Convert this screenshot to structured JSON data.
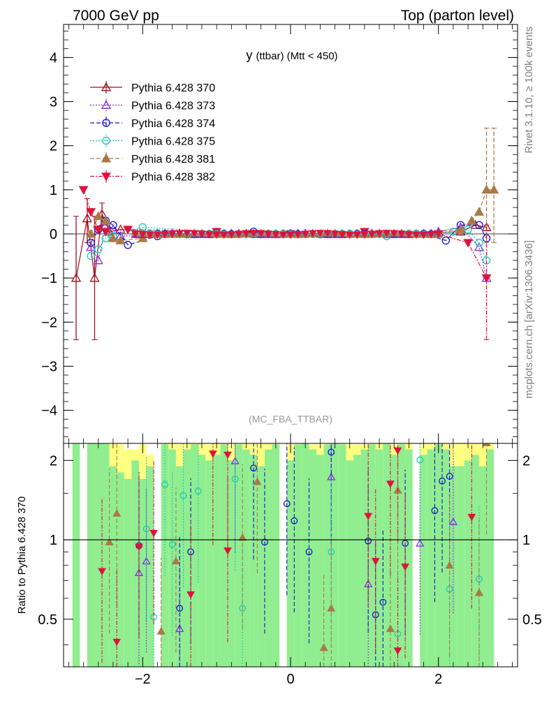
{
  "header": {
    "left": "7000 GeV pp",
    "right": "Top (parton level)"
  },
  "side_labels": {
    "rivet": "Rivet 3.1.10, ≥ 100k events",
    "mcplots": "mcplots.cern.ch [arXiv:1306.3436]"
  },
  "chart_data": [
    {
      "type": "scatter",
      "panel": "main",
      "title_main": "y",
      "title_sub": "(ttbar) (Mtt < 450)",
      "watermark": "(MC_FBA_TTBAR)",
      "xlabel": "",
      "ylabel": "",
      "xlim": [
        -3.07,
        3.07
      ],
      "ylim": [
        -4.75,
        4.75
      ],
      "yticks": [
        -4,
        -3,
        -2,
        -1,
        0,
        1,
        2,
        3,
        4
      ],
      "xticks": [
        -2,
        0,
        2
      ],
      "legend_position": "top-left",
      "series": [
        {
          "name": "Pythia 6.428 370",
          "color": "#a00f1e",
          "marker": "open-triangle-up",
          "dash": "solid",
          "points": [
            [
              -2.9,
              -1.0
            ],
            [
              -2.75,
              0.35
            ],
            [
              -2.65,
              -1.0
            ],
            [
              -2.55,
              0.45
            ],
            [
              -2.45,
              0.05
            ],
            [
              -2.3,
              0.1
            ],
            [
              -1.5,
              0.0
            ],
            [
              0.0,
              0.0
            ],
            [
              1.5,
              0.0
            ],
            [
              2.3,
              0.05
            ],
            [
              2.5,
              0.2
            ],
            [
              2.65,
              0.15
            ]
          ],
          "errors": [
            [
              -2.9,
              -2.4,
              0.4
            ],
            [
              -2.75,
              -0.2,
              0.8
            ],
            [
              -2.65,
              -2.4,
              0.4
            ],
            [
              -2.55,
              0.2,
              0.7
            ]
          ]
        },
        {
          "name": "Pythia 6.428 373",
          "color": "#8a2be2",
          "marker": "open-triangle-up",
          "dash": "dotted",
          "points": [
            [
              -2.7,
              -0.3
            ],
            [
              -2.6,
              -0.6
            ],
            [
              -2.5,
              0.2
            ],
            [
              -2.4,
              0.1
            ],
            [
              -2.3,
              -0.05
            ],
            [
              -1.0,
              0.0
            ],
            [
              0.5,
              0.0
            ],
            [
              2.0,
              0.05
            ],
            [
              2.3,
              0.15
            ],
            [
              2.55,
              -0.3
            ],
            [
              2.65,
              -1.0
            ]
          ]
        },
        {
          "name": "Pythia 6.428 374",
          "color": "#1414c8",
          "marker": "open-circle",
          "dash": "dashed",
          "points": [
            [
              -2.7,
              -0.2
            ],
            [
              -2.6,
              0.1
            ],
            [
              -2.5,
              0.3
            ],
            [
              -2.4,
              0.2
            ],
            [
              -2.2,
              -0.25
            ],
            [
              -1.8,
              -0.05
            ],
            [
              -0.5,
              0.05
            ],
            [
              0.5,
              0.0
            ],
            [
              1.8,
              0.0
            ],
            [
              2.1,
              -0.15
            ],
            [
              2.3,
              0.2
            ],
            [
              2.55,
              0.2
            ],
            [
              2.65,
              -0.1
            ]
          ]
        },
        {
          "name": "Pythia 6.428 375",
          "color": "#1ec8b4",
          "marker": "open-circle",
          "dash": "dotted",
          "points": [
            [
              -2.7,
              -0.5
            ],
            [
              -2.6,
              -0.35
            ],
            [
              -2.5,
              -0.1
            ],
            [
              -2.4,
              -0.05
            ],
            [
              -2.0,
              0.15
            ],
            [
              -1.0,
              0.05
            ],
            [
              0.0,
              0.0
            ],
            [
              1.3,
              -0.05
            ],
            [
              2.2,
              0.05
            ],
            [
              2.4,
              0.1
            ],
            [
              2.55,
              -0.2
            ],
            [
              2.65,
              -0.6
            ]
          ]
        },
        {
          "name": "Pythia 6.428 381",
          "color": "#aa7a46",
          "marker": "filled-triangle-up",
          "dash": "dashed",
          "points": [
            [
              -2.7,
              0.0
            ],
            [
              -2.6,
              0.4
            ],
            [
              -2.5,
              0.3
            ],
            [
              -2.4,
              -0.1
            ],
            [
              -2.3,
              -0.15
            ],
            [
              -2.0,
              -0.1
            ],
            [
              -0.5,
              0.0
            ],
            [
              0.5,
              0.0
            ],
            [
              1.5,
              0.0
            ],
            [
              2.3,
              0.1
            ],
            [
              2.45,
              0.3
            ],
            [
              2.55,
              0.5
            ],
            [
              2.65,
              1.0
            ],
            [
              2.75,
              1.0
            ]
          ],
          "errors": [
            [
              2.65,
              -0.2,
              2.4
            ],
            [
              2.75,
              -0.2,
              2.4
            ]
          ]
        },
        {
          "name": "Pythia 6.428 382",
          "color": "#dc143c",
          "marker": "filled-triangle-down",
          "dash": "dashdot",
          "points": [
            [
              -2.8,
              1.0
            ],
            [
              -2.7,
              0.5
            ],
            [
              -2.6,
              0.1
            ],
            [
              -2.5,
              0.05
            ],
            [
              -2.2,
              0.1
            ],
            [
              -1.0,
              0.05
            ],
            [
              0.0,
              0.0
            ],
            [
              1.0,
              0.05
            ],
            [
              2.0,
              0.0
            ],
            [
              2.4,
              -0.2
            ],
            [
              2.65,
              -1.0
            ]
          ],
          "errors": [
            [
              2.65,
              -2.4,
              0.2
            ]
          ]
        }
      ]
    },
    {
      "type": "scatter",
      "panel": "ratio",
      "ylabel": "Ratio to Pythia 6.428 370",
      "xlim": [
        -3.07,
        3.07
      ],
      "ylim": [
        0.33,
        2.32
      ],
      "yticks": [
        0.5,
        1,
        2
      ],
      "ytick_labels": [
        "0.5",
        "1",
        "2"
      ],
      "xticks": [
        -2,
        0,
        2
      ],
      "xtick_labels": [
        "−2",
        "0",
        "2"
      ],
      "band_colors": {
        "inner": "#90ee90",
        "outer": "#ffff80"
      },
      "series": [
        {
          "name": "Pythia 6.428 373",
          "color": "#8a2be2",
          "marker": "open-triangle-up",
          "points": [
            [
              -2.05,
              0.75
            ],
            [
              -1.95,
              0.83
            ],
            [
              -1.5,
              0.46
            ],
            [
              -0.75,
              1.99
            ],
            [
              0.55,
              1.73
            ],
            [
              1.05,
              0.68
            ],
            [
              1.75,
              0.97
            ],
            [
              2.2,
              1.17
            ]
          ]
        },
        {
          "name": "Pythia 6.428 374",
          "color": "#1414c8",
          "marker": "open-circle",
          "points": [
            [
              -2.05,
              0.95
            ],
            [
              -1.5,
              0.55
            ],
            [
              -1.35,
              0.9
            ],
            [
              -0.5,
              1.87
            ],
            [
              -0.35,
              0.98
            ],
            [
              -0.05,
              1.37
            ],
            [
              0.05,
              1.18
            ],
            [
              0.25,
              0.9
            ],
            [
              0.55,
              2.15
            ],
            [
              1.05,
              0.99
            ],
            [
              1.15,
              0.52
            ],
            [
              1.25,
              0.58
            ],
            [
              1.55,
              0.97
            ],
            [
              1.95,
              1.29
            ],
            [
              2.05,
              1.67
            ],
            [
              2.15,
              1.74
            ]
          ]
        },
        {
          "name": "Pythia 6.428 375",
          "color": "#1ec8b4",
          "marker": "open-circle",
          "points": [
            [
              -1.95,
              1.1
            ],
            [
              -1.85,
              0.51
            ],
            [
              -1.7,
              1.62
            ],
            [
              -1.6,
              0.96
            ],
            [
              -1.45,
              1.47
            ],
            [
              -1.25,
              1.53
            ],
            [
              -0.75,
              1.7
            ],
            [
              -0.65,
              0.55
            ],
            [
              0.55,
              0.9
            ],
            [
              1.45,
              0.44
            ],
            [
              1.75,
              2.01
            ],
            [
              2.15,
              0.65
            ],
            [
              2.55,
              0.71
            ]
          ]
        },
        {
          "name": "Pythia 6.428 381",
          "color": "#aa7a46",
          "marker": "filled-triangle-up",
          "points": [
            [
              -2.45,
              0.98
            ],
            [
              -2.35,
              1.26
            ],
            [
              -1.75,
              0.45
            ],
            [
              -1.55,
              0.83
            ],
            [
              -0.65,
              1.02
            ],
            [
              -0.45,
              1.66
            ],
            [
              0.45,
              0.39
            ],
            [
              0.55,
              0.55
            ],
            [
              1.35,
              0.46
            ],
            [
              1.45,
              1.54
            ],
            [
              2.15,
              0.8
            ],
            [
              2.55,
              0.63
            ],
            [
              2.65,
              2.33
            ]
          ]
        },
        {
          "name": "Pythia 6.428 382",
          "color": "#dc143c",
          "marker": "filled-triangle-down",
          "points": [
            [
              -2.55,
              0.76
            ],
            [
              -2.35,
              0.41
            ],
            [
              -2.05,
              0.94
            ],
            [
              -1.85,
              1.06
            ],
            [
              -1.35,
              0.62
            ],
            [
              -1.05,
              2.12
            ],
            [
              -0.85,
              2.1
            ],
            [
              -0.85,
              0.91
            ],
            [
              1.05,
              1.23
            ],
            [
              1.15,
              0.83
            ],
            [
              1.35,
              1.63
            ],
            [
              1.45,
              0.38
            ],
            [
              1.45,
              2.18
            ],
            [
              1.55,
              0.79
            ],
            [
              2.45,
              1.22
            ]
          ]
        }
      ]
    }
  ]
}
